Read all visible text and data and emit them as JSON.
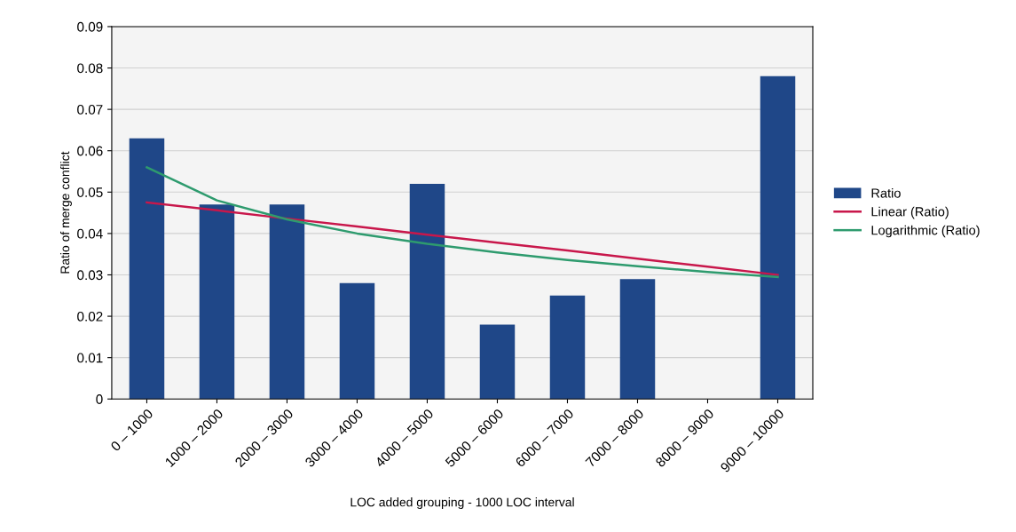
{
  "chart_data": {
    "type": "bar",
    "xlabel": "LOC added grouping - 1000 LOC interval",
    "ylabel": "Ratio of merge conflict",
    "categories": [
      "0 – 1000",
      "1000 – 2000",
      "2000 – 3000",
      "3000 – 4000",
      "4000 – 5000",
      "5000 – 6000",
      "6000 – 7000",
      "7000 – 8000",
      "8000 – 9000",
      "9000 – 10000"
    ],
    "series": [
      {
        "name": "Ratio",
        "color": "#1f4788",
        "values": [
          0.063,
          0.047,
          0.047,
          0.028,
          0.052,
          0.018,
          0.025,
          0.029,
          0,
          0.078
        ]
      },
      {
        "name": "Linear (Ratio)",
        "type": "line",
        "color": "#c8174b",
        "values": [
          0.0475,
          0.0456,
          0.0436,
          0.0417,
          0.0397,
          0.0378,
          0.0359,
          0.0339,
          0.032,
          0.03
        ]
      },
      {
        "name": "Logarithmic (Ratio)",
        "type": "line",
        "color": "#2e9b6e",
        "values": [
          0.056,
          0.048,
          0.0434,
          0.04,
          0.0375,
          0.0354,
          0.0336,
          0.0321,
          0.0307,
          0.0295
        ]
      }
    ],
    "ylim": [
      0,
      0.09
    ],
    "yticks": [
      0,
      0.01,
      0.02,
      0.03,
      0.04,
      0.05,
      0.06,
      0.07,
      0.08,
      0.09
    ],
    "grid": "y",
    "legend": "right"
  }
}
